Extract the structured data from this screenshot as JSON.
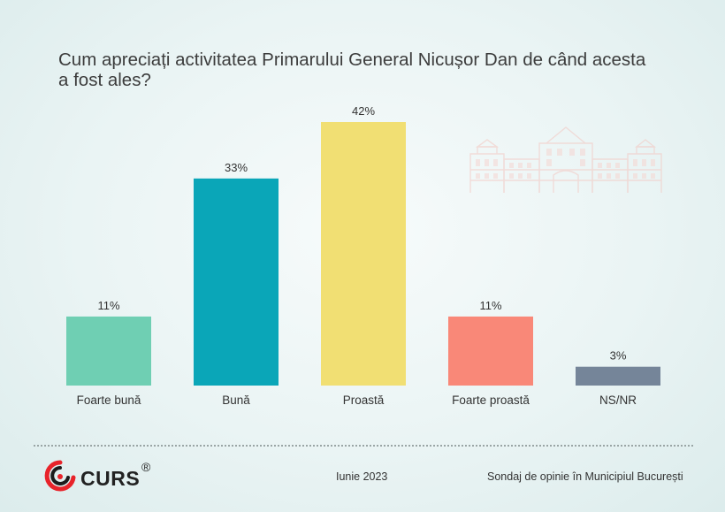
{
  "title": "Cum apreciați activitatea Primarului General Nicușor Dan de când acesta a fost ales?",
  "chart_data": {
    "type": "bar",
    "categories": [
      "Foarte bună",
      "Bună",
      "Proastă",
      "Foarte proastă",
      "NS/NR"
    ],
    "values": [
      11,
      33,
      42,
      11,
      3
    ],
    "value_labels": [
      "11%",
      "33%",
      "42%",
      "11%",
      "3%"
    ],
    "colors": [
      "#6fcfb3",
      "#0aa6b8",
      "#f1df73",
      "#f98878",
      "#758599"
    ],
    "ylim": [
      0,
      42
    ],
    "grid": false,
    "legend": "none"
  },
  "footer": {
    "brand": "CURS",
    "brand_mark": "®",
    "date": "Iunie 2023",
    "source": "Sondaj de opinie în Municipiul București"
  },
  "colors": {
    "title": "#3c3c3c",
    "background": "#eaf4f4",
    "logo_red": "#e8232a"
  }
}
